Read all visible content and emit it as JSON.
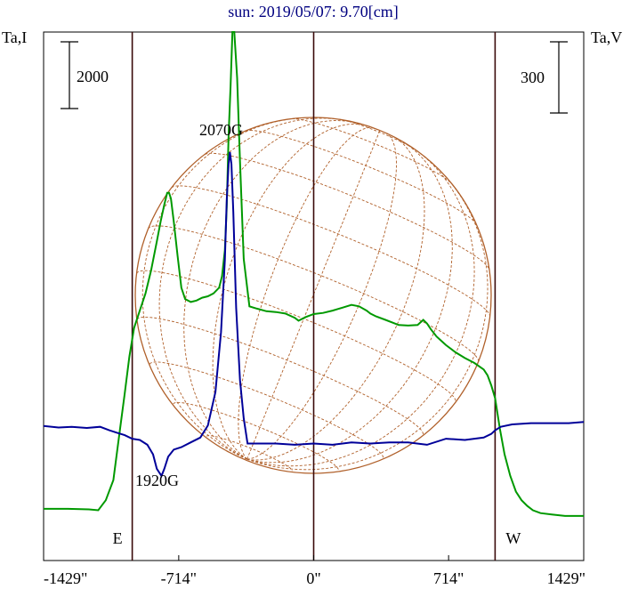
{
  "chart_data": {
    "type": "line",
    "title": "sun: 2019/05/07: 9.70[cm]",
    "left_axis_label": "Ta,I",
    "right_axis_label": "Ta,V",
    "left_scale_bar": {
      "label": "2000",
      "value": 2000
    },
    "right_scale_bar": {
      "label": "300",
      "value": 300
    },
    "x_unit": "arcsec",
    "xlim": [
      -1429,
      1429
    ],
    "x_ticks": [
      {
        "value": -1429,
        "label": "-1429\""
      },
      {
        "value": -714,
        "label": "-714\""
      },
      {
        "value": 0,
        "label": "0\""
      },
      {
        "value": 714,
        "label": "714\""
      },
      {
        "value": 1429,
        "label": "1429\""
      }
    ],
    "limb_markers": [
      {
        "label": "E",
        "x": -960
      },
      {
        "label": "W",
        "x": 960
      }
    ],
    "annotations": [
      {
        "text": "2070G",
        "x": -443,
        "series": "V"
      },
      {
        "text": "1920G",
        "x": -805,
        "series": "V"
      }
    ],
    "ylim_I": [
      0,
      11000
    ],
    "ylim_V": [
      -200,
      1150
    ],
    "series": [
      {
        "key": "I",
        "color": "#009900",
        "x": [
          -1429,
          -1300,
          -1190,
          -1140,
          -1100,
          -1060,
          -1030,
          -1000,
          -975,
          -950,
          -920,
          -890,
          -860,
          -830,
          -810,
          -790,
          -775,
          -765,
          -755,
          -740,
          -720,
          -700,
          -680,
          -650,
          -620,
          -590,
          -560,
          -530,
          -500,
          -485,
          -470,
          -460,
          -450,
          -440,
          -430,
          -420,
          -405,
          -390,
          -370,
          -340,
          -300,
          -250,
          -200,
          -150,
          -100,
          -80,
          -40,
          0,
          50,
          100,
          150,
          200,
          240,
          280,
          300,
          330,
          380,
          450,
          500,
          550,
          580,
          600,
          620,
          650,
          700,
          750,
          800,
          850,
          900,
          920,
          940,
          960,
          985,
          1010,
          1040,
          1070,
          1100,
          1130,
          1160,
          1200,
          1260,
          1330,
          1429
        ],
        "values": [
          500,
          500,
          480,
          450,
          800,
          1500,
          3000,
          4500,
          5800,
          6800,
          7400,
          8000,
          8800,
          9800,
          10500,
          11100,
          11500,
          11500,
          11300,
          10500,
          9300,
          8200,
          7800,
          7700,
          7750,
          7850,
          7900,
          8000,
          8200,
          8600,
          9500,
          11000,
          13500,
          15200,
          17100,
          17100,
          15500,
          12600,
          9200,
          7550,
          7470,
          7380,
          7350,
          7300,
          7150,
          7050,
          7180,
          7280,
          7320,
          7400,
          7500,
          7600,
          7550,
          7400,
          7300,
          7200,
          7080,
          6900,
          6880,
          6900,
          7080,
          6950,
          6750,
          6500,
          6200,
          5950,
          5750,
          5580,
          5350,
          5150,
          4800,
          4350,
          3300,
          2400,
          1650,
          1100,
          800,
          600,
          450,
          350,
          300,
          250,
          250
        ]
      },
      {
        "key": "V",
        "color": "#000099",
        "x": [
          -1429,
          -1350,
          -1280,
          -1200,
          -1130,
          -1080,
          -1040,
          -1000,
          -960,
          -920,
          -880,
          -850,
          -830,
          -805,
          -790,
          -770,
          -740,
          -700,
          -650,
          -600,
          -560,
          -520,
          -490,
          -470,
          -460,
          -450,
          -443,
          -435,
          -425,
          -410,
          -390,
          -370,
          -350,
          -300,
          -200,
          -100,
          0,
          100,
          200,
          300,
          400,
          500,
          600,
          700,
          800,
          850,
          900,
          940,
          960,
          990,
          1050,
          1150,
          1250,
          1350,
          1429
        ],
        "values": [
          8,
          2,
          5,
          0,
          5,
          -10,
          -20,
          -30,
          -45,
          -50,
          -70,
          -110,
          -170,
          -200,
          -170,
          -120,
          -90,
          -80,
          -60,
          -40,
          10,
          150,
          400,
          700,
          950,
          1100,
          1150,
          1100,
          900,
          500,
          200,
          40,
          -65,
          -65,
          -65,
          -70,
          -65,
          -70,
          -60,
          -65,
          -60,
          -60,
          -70,
          -45,
          -50,
          -45,
          -40,
          -25,
          -10,
          5,
          15,
          20,
          20,
          20,
          25
        ]
      }
    ],
    "overlay": "solar disk with heliographic coordinate grid"
  }
}
